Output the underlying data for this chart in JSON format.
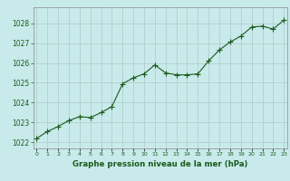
{
  "x": [
    0,
    1,
    2,
    3,
    4,
    5,
    6,
    7,
    8,
    9,
    10,
    11,
    12,
    13,
    14,
    15,
    16,
    17,
    18,
    19,
    20,
    21,
    22,
    23
  ],
  "y": [
    1022.2,
    1022.55,
    1022.8,
    1023.1,
    1023.3,
    1023.25,
    1023.5,
    1023.8,
    1024.95,
    1025.25,
    1025.45,
    1025.9,
    1025.5,
    1025.4,
    1025.4,
    1025.45,
    1026.1,
    1026.65,
    1027.05,
    1027.35,
    1027.8,
    1027.85,
    1027.7,
    1028.15
  ],
  "line_color": "#1a5c1a",
  "marker_color": "#1a5c1a",
  "bg_color": "#c8eaea",
  "grid_color": "#b0c8c8",
  "xlabel": "Graphe pression niveau de la mer (hPa)",
  "xlabel_color": "#1a5c1a",
  "ylabel_ticks": [
    1022,
    1023,
    1024,
    1025,
    1026,
    1027,
    1028
  ],
  "ylim": [
    1021.7,
    1028.8
  ],
  "xlim": [
    -0.3,
    23.3
  ],
  "ytick_fontsize": 5.5,
  "xtick_fontsize": 4.5,
  "xlabel_fontsize": 6.2,
  "linewidth": 0.8,
  "markersize": 2.2
}
